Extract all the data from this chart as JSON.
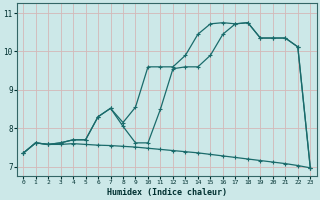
{
  "xlabel": "Humidex (Indice chaleur)",
  "bg_color": "#cce8e8",
  "line_color": "#1a6b6b",
  "grid_color": "#b8d8d8",
  "xlim": [
    -0.5,
    23.5
  ],
  "ylim": [
    6.75,
    11.25
  ],
  "x_ticks": [
    0,
    1,
    2,
    3,
    4,
    5,
    6,
    7,
    8,
    9,
    10,
    11,
    12,
    13,
    14,
    15,
    16,
    17,
    18,
    19,
    20,
    21,
    22,
    23
  ],
  "y_ticks": [
    7,
    8,
    9,
    10,
    11
  ],
  "line1_y": [
    7.35,
    7.62,
    7.58,
    7.58,
    7.6,
    7.58,
    7.56,
    7.55,
    7.53,
    7.51,
    7.48,
    7.45,
    7.42,
    7.39,
    7.36,
    7.32,
    7.28,
    7.24,
    7.2,
    7.16,
    7.12,
    7.08,
    7.03,
    6.97
  ],
  "line2_y": [
    7.35,
    7.62,
    7.58,
    7.62,
    7.7,
    7.7,
    8.3,
    8.52,
    8.05,
    7.62,
    7.62,
    8.5,
    9.55,
    9.6,
    9.6,
    9.9,
    10.45,
    10.72,
    10.75,
    10.35,
    10.35,
    10.35,
    10.12,
    6.97
  ],
  "line3_y": [
    7.35,
    7.62,
    7.58,
    7.62,
    7.7,
    7.7,
    8.3,
    8.52,
    8.15,
    8.55,
    9.6,
    9.6,
    9.6,
    9.9,
    10.45,
    10.72,
    10.75,
    10.72,
    10.75,
    10.35,
    10.35,
    10.35,
    10.12,
    6.97
  ]
}
